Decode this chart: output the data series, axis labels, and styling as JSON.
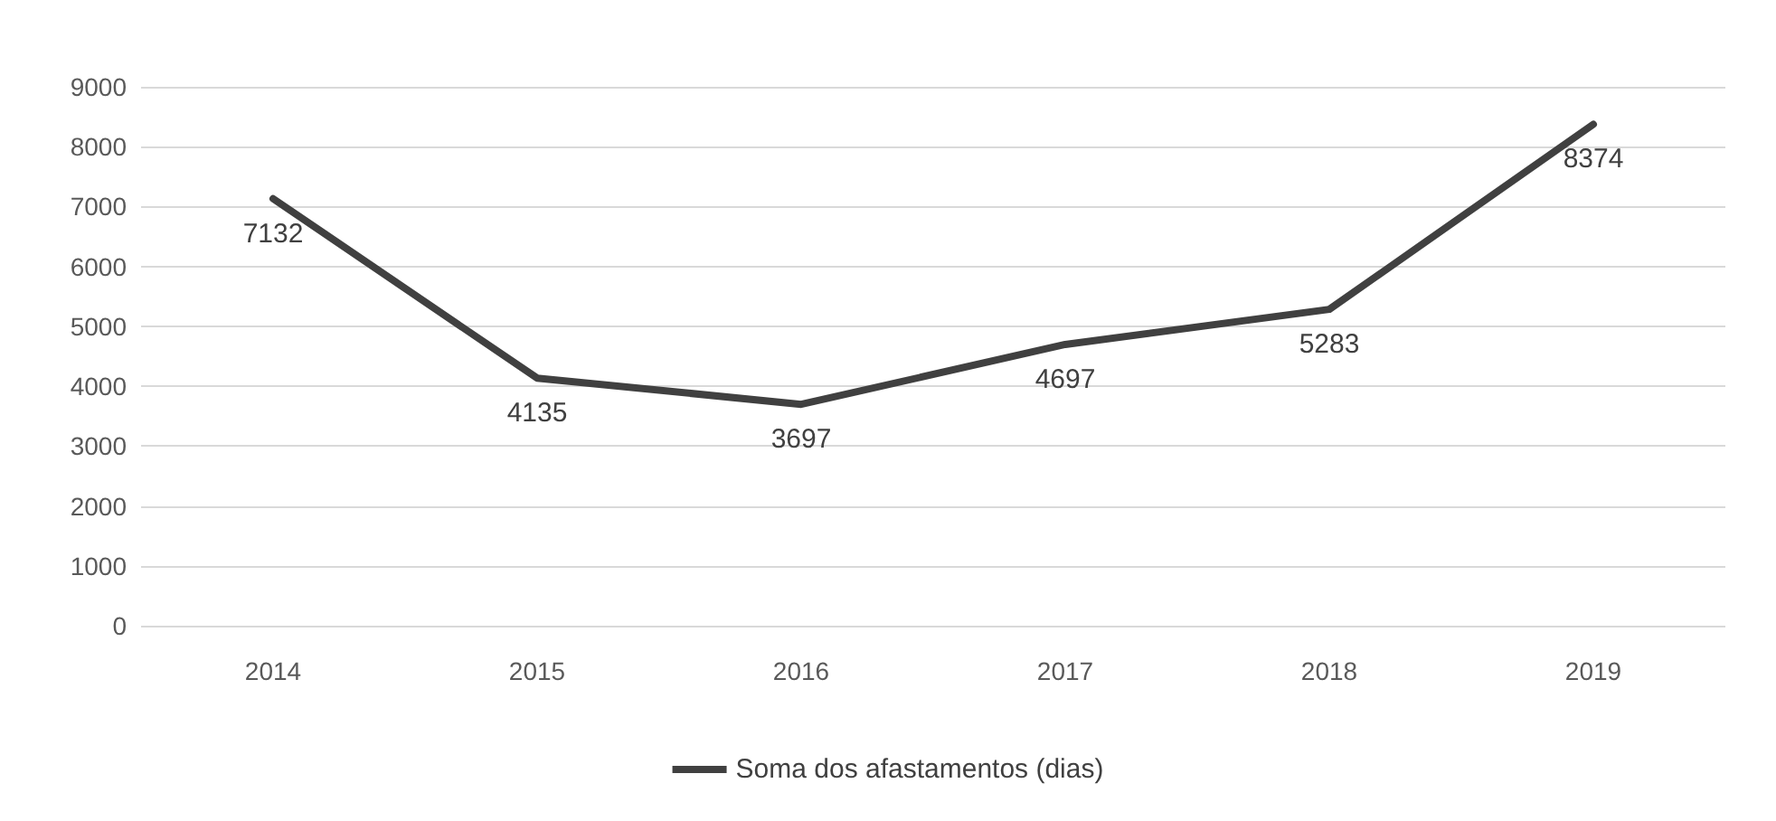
{
  "chart_data": {
    "type": "line",
    "categories": [
      "2014",
      "2015",
      "2016",
      "2017",
      "2018",
      "2019"
    ],
    "series": [
      {
        "name": "Soma dos afastamentos (dias)",
        "color": "#404040",
        "values": [
          7132,
          4135,
          3697,
          4697,
          5283,
          8374
        ]
      }
    ],
    "ylim": [
      0,
      9000
    ],
    "yticks": [
      0,
      1000,
      2000,
      3000,
      4000,
      5000,
      6000,
      7000,
      8000,
      9000
    ],
    "grid": "y",
    "legend": "bottom",
    "data_labels": true,
    "marker": "none",
    "line_style": "solid"
  }
}
